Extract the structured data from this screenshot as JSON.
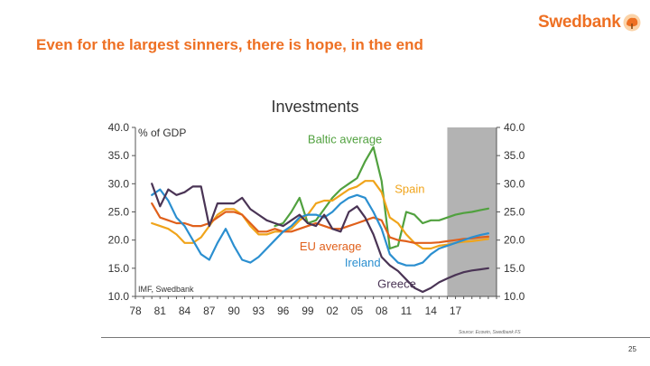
{
  "brand": {
    "name": "Swedbank",
    "accent_color": "#ee7023",
    "logo_icon": "oak-tree-icon"
  },
  "slide": {
    "title": "Even for the largest sinners, there is hope, in the end",
    "page_number": "25",
    "source_note": "Source: Ecowin, Swedbank FS"
  },
  "chart_data": {
    "type": "line",
    "title": "Investments",
    "unit_label": "% of GDP",
    "source": "IMF, Swedbank",
    "xlabel": "",
    "ylabel": "% of GDP",
    "x_range": [
      1978,
      2022
    ],
    "ylim": [
      10.0,
      40.0
    ],
    "y_ticks": [
      "10.0",
      "15.0",
      "20.0",
      "25.0",
      "30.0",
      "35.0",
      "40.0"
    ],
    "x_ticks": [
      {
        "value": 1978,
        "label": "78"
      },
      {
        "value": 1981,
        "label": "81"
      },
      {
        "value": 1984,
        "label": "84"
      },
      {
        "value": 1987,
        "label": "87"
      },
      {
        "value": 1990,
        "label": "90"
      },
      {
        "value": 1993,
        "label": "93"
      },
      {
        "value": 1996,
        "label": "96"
      },
      {
        "value": 1999,
        "label": "99"
      },
      {
        "value": 2002,
        "label": "02"
      },
      {
        "value": 2005,
        "label": "05"
      },
      {
        "value": 2008,
        "label": "08"
      },
      {
        "value": 2011,
        "label": "11"
      },
      {
        "value": 2014,
        "label": "14"
      },
      {
        "value": 2017,
        "label": "17"
      }
    ],
    "forecast_shade": {
      "start": 2016,
      "end": 2022,
      "color": "#b3b3b3"
    },
    "series": [
      {
        "name": "Baltic average",
        "color": "#51a13f",
        "x": [
          1995,
          1996,
          1997,
          1998,
          1999,
          2000,
          2001,
          2002,
          2003,
          2004,
          2005,
          2006,
          2007,
          2008,
          2009,
          2010,
          2011,
          2012,
          2013,
          2014,
          2015,
          2016,
          2017,
          2018,
          2019,
          2020,
          2021
        ],
        "values": [
          22.5,
          23.0,
          25.0,
          27.5,
          23.0,
          23.5,
          25.5,
          27.5,
          29.0,
          30.0,
          31.0,
          34.0,
          36.5,
          30.5,
          18.5,
          19.0,
          25.0,
          24.5,
          23.0,
          23.5,
          23.5,
          24.0,
          24.5,
          24.8,
          25.0,
          25.3,
          25.6
        ]
      },
      {
        "name": "Spain",
        "color": "#f0a41b",
        "x": [
          1980,
          1981,
          1982,
          1983,
          1984,
          1985,
          1986,
          1987,
          1988,
          1989,
          1990,
          1991,
          1992,
          1993,
          1994,
          1995,
          1996,
          1997,
          1998,
          1999,
          2000,
          2001,
          2002,
          2003,
          2004,
          2005,
          2006,
          2007,
          2008,
          2009,
          2010,
          2011,
          2012,
          2013,
          2014,
          2015,
          2016,
          2017,
          2018,
          2019,
          2020,
          2021
        ],
        "values": [
          23.0,
          22.5,
          22.0,
          21.0,
          19.5,
          19.5,
          20.5,
          22.5,
          24.5,
          25.5,
          25.5,
          24.5,
          22.5,
          21.0,
          21.0,
          21.5,
          21.5,
          22.0,
          23.5,
          24.5,
          26.5,
          27.0,
          27.0,
          28.0,
          29.0,
          29.5,
          30.5,
          30.5,
          28.5,
          24.0,
          23.0,
          21.0,
          19.5,
          18.5,
          18.5,
          19.0,
          19.2,
          19.5,
          19.7,
          19.8,
          20.0,
          20.2
        ]
      },
      {
        "name": "EU average",
        "color": "#e0601b",
        "x": [
          1980,
          1981,
          1982,
          1983,
          1984,
          1985,
          1986,
          1987,
          1988,
          1989,
          1990,
          1991,
          1992,
          1993,
          1994,
          1995,
          1996,
          1997,
          1998,
          1999,
          2000,
          2001,
          2002,
          2003,
          2004,
          2005,
          2006,
          2007,
          2008,
          2009,
          2010,
          2011,
          2012,
          2013,
          2014,
          2015,
          2016,
          2017,
          2018,
          2019,
          2020,
          2021
        ],
        "values": [
          26.5,
          24.0,
          23.5,
          23.0,
          23.0,
          22.5,
          22.5,
          23.0,
          24.0,
          25.0,
          25.0,
          24.5,
          23.0,
          21.5,
          21.5,
          22.0,
          21.5,
          21.5,
          22.0,
          22.5,
          23.0,
          22.5,
          22.0,
          22.0,
          22.5,
          23.0,
          23.5,
          24.0,
          23.5,
          20.5,
          20.0,
          19.8,
          19.5,
          19.5,
          19.5,
          19.6,
          19.8,
          20.0,
          20.2,
          20.3,
          20.5,
          20.6
        ]
      },
      {
        "name": "Ireland",
        "color": "#2b8fd0",
        "x": [
          1980,
          1981,
          1982,
          1983,
          1984,
          1985,
          1986,
          1987,
          1988,
          1989,
          1990,
          1991,
          1992,
          1993,
          1994,
          1995,
          1996,
          1997,
          1998,
          1999,
          2000,
          2001,
          2002,
          2003,
          2004,
          2005,
          2006,
          2007,
          2008,
          2009,
          2010,
          2011,
          2012,
          2013,
          2014,
          2015,
          2016,
          2017,
          2018,
          2019,
          2020,
          2021
        ],
        "values": [
          28.0,
          29.0,
          27.0,
          24.0,
          22.5,
          20.0,
          17.5,
          16.5,
          19.5,
          22.0,
          19.0,
          16.5,
          16.0,
          17.0,
          18.5,
          20.0,
          21.5,
          22.5,
          24.0,
          24.5,
          24.5,
          24.0,
          25.0,
          26.5,
          27.5,
          28.0,
          27.5,
          25.0,
          22.0,
          17.5,
          16.0,
          15.5,
          15.5,
          16.0,
          17.5,
          18.5,
          19.0,
          19.5,
          20.0,
          20.5,
          20.9,
          21.2
        ]
      },
      {
        "name": "Greece",
        "color": "#4a3455",
        "x": [
          1980,
          1981,
          1982,
          1983,
          1984,
          1985,
          1986,
          1987,
          1988,
          1989,
          1990,
          1991,
          1992,
          1993,
          1994,
          1995,
          1996,
          1997,
          1998,
          1999,
          2000,
          2001,
          2002,
          2003,
          2004,
          2005,
          2006,
          2007,
          2008,
          2009,
          2010,
          2011,
          2012,
          2013,
          2014,
          2015,
          2016,
          2017,
          2018,
          2019,
          2020,
          2021
        ],
        "values": [
          30.0,
          26.0,
          29.0,
          28.0,
          28.5,
          29.5,
          29.5,
          22.5,
          26.5,
          26.5,
          26.5,
          27.5,
          25.5,
          24.5,
          23.5,
          23.0,
          22.5,
          23.5,
          24.5,
          23.0,
          22.5,
          24.5,
          22.0,
          21.5,
          25.0,
          26.0,
          24.0,
          21.0,
          17.0,
          15.5,
          14.5,
          13.0,
          11.5,
          10.8,
          11.5,
          12.5,
          13.2,
          13.8,
          14.3,
          14.6,
          14.8,
          15.0
        ]
      }
    ],
    "labels": [
      {
        "series": "Baltic average",
        "text": "Baltic average",
        "x": 1999.0,
        "y": 37.2
      },
      {
        "series": "Spain",
        "text": "Spain",
        "x": 2009.6,
        "y": 28.4
      },
      {
        "series": "EU average",
        "text": "EU average",
        "x": 1998.0,
        "y": 18.2
      },
      {
        "series": "Ireland",
        "text": "Ireland",
        "x": 2003.5,
        "y": 15.3
      },
      {
        "series": "Greece",
        "text": "Greece",
        "x": 2007.5,
        "y": 11.5
      }
    ]
  }
}
